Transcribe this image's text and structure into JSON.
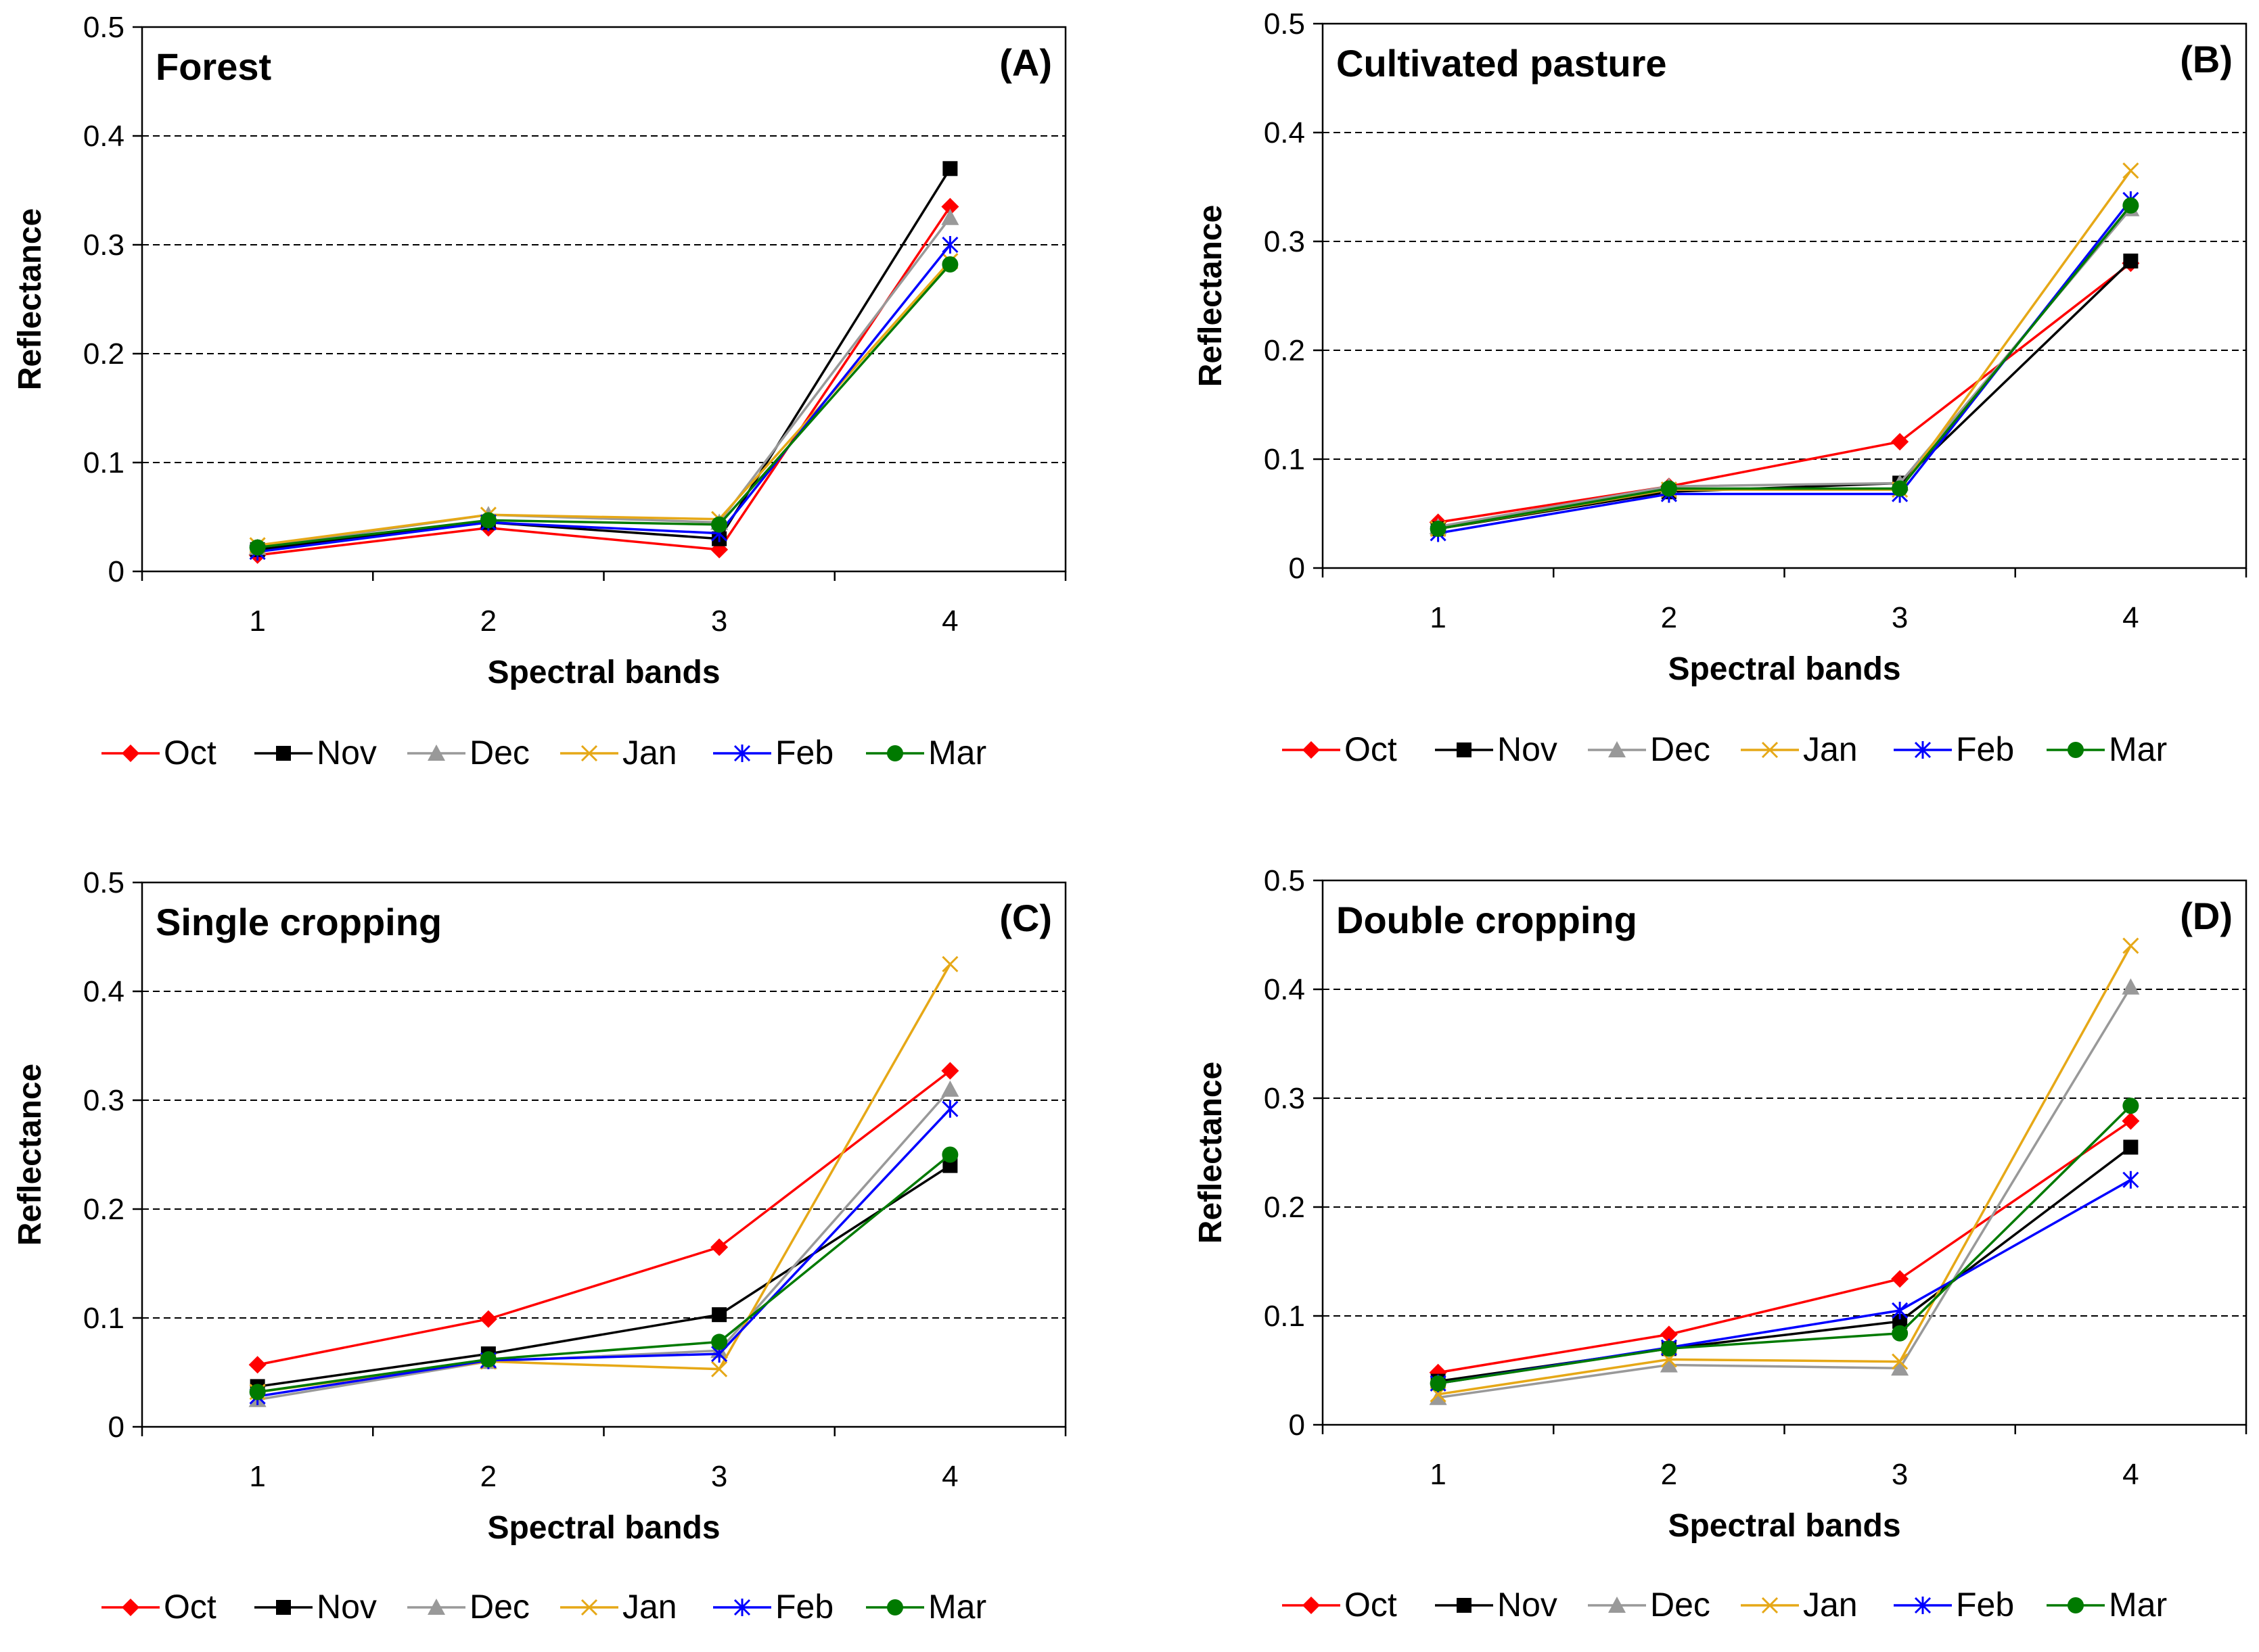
{
  "chart_data": [
    {
      "type": "line",
      "title": "Forest",
      "panel_label": "(A)",
      "xlabel": "Spectral bands",
      "ylabel": "Reflectance",
      "x": [
        1,
        2,
        3,
        4
      ],
      "xlim": [
        0.5,
        4.5
      ],
      "ylim": [
        0,
        0.5
      ],
      "yticks": [
        0,
        0.1,
        0.2,
        0.3,
        0.4,
        0.5
      ],
      "ytick_labels": [
        "0",
        "0.1",
        "0.2",
        "0.3",
        "0.4",
        "0.5"
      ],
      "grid": "horizontal dashed",
      "legend": "bottom",
      "series": [
        {
          "name": "Oct",
          "values": [
            0.015,
            0.04,
            0.02,
            0.335
          ]
        },
        {
          "name": "Nov",
          "values": [
            0.02,
            0.045,
            0.03,
            0.37
          ]
        },
        {
          "name": "Dec",
          "values": [
            0.022,
            0.052,
            0.045,
            0.325
          ]
        },
        {
          "name": "Jan",
          "values": [
            0.024,
            0.052,
            0.048,
            0.285
          ]
        },
        {
          "name": "Feb",
          "values": [
            0.018,
            0.045,
            0.035,
            0.3
          ]
        },
        {
          "name": "Mar",
          "values": [
            0.022,
            0.047,
            0.043,
            0.282
          ]
        }
      ]
    },
    {
      "type": "line",
      "title": "Cultivated pasture",
      "panel_label": "(B)",
      "xlabel": "Spectral bands",
      "ylabel": "Reflectance",
      "x": [
        1,
        2,
        3,
        4
      ],
      "xlim": [
        0.5,
        4.5
      ],
      "ylim": [
        0,
        0.5
      ],
      "yticks": [
        0,
        0.1,
        0.2,
        0.3,
        0.4,
        0.5
      ],
      "ytick_labels": [
        "0",
        "0.1",
        "0.2",
        "0.3",
        "0.4",
        "0.5"
      ],
      "grid": "horizontal dashed",
      "legend": "bottom",
      "series": [
        {
          "name": "Oct",
          "values": [
            0.042,
            0.075,
            0.116,
            0.28
          ]
        },
        {
          "name": "Nov",
          "values": [
            0.036,
            0.07,
            0.078,
            0.282
          ]
        },
        {
          "name": "Dec",
          "values": [
            0.038,
            0.075,
            0.078,
            0.33
          ]
        },
        {
          "name": "Jan",
          "values": [
            0.036,
            0.072,
            0.072,
            0.365
          ]
        },
        {
          "name": "Feb",
          "values": [
            0.032,
            0.068,
            0.068,
            0.338
          ]
        },
        {
          "name": "Mar",
          "values": [
            0.036,
            0.073,
            0.073,
            0.333
          ]
        }
      ]
    },
    {
      "type": "line",
      "title": "Single cropping",
      "panel_label": "(C)",
      "xlabel": "Spectral bands",
      "ylabel": "Reflectance",
      "x": [
        1,
        2,
        3,
        4
      ],
      "xlim": [
        0.5,
        4.5
      ],
      "ylim": [
        0,
        0.5
      ],
      "yticks": [
        0,
        0.1,
        0.2,
        0.3,
        0.4,
        0.5
      ],
      "ytick_labels": [
        "0",
        "0.1",
        "0.2",
        "0.3",
        "0.4",
        "0.5"
      ],
      "grid": "horizontal dashed",
      "legend": "bottom",
      "series": [
        {
          "name": "Oct",
          "values": [
            0.057,
            0.099,
            0.165,
            0.327
          ]
        },
        {
          "name": "Nov",
          "values": [
            0.037,
            0.067,
            0.103,
            0.24
          ]
        },
        {
          "name": "Dec",
          "values": [
            0.025,
            0.06,
            0.07,
            0.31
          ]
        },
        {
          "name": "Jan",
          "values": [
            0.032,
            0.06,
            0.053,
            0.425
          ]
        },
        {
          "name": "Feb",
          "values": [
            0.028,
            0.061,
            0.067,
            0.292
          ]
        },
        {
          "name": "Mar",
          "values": [
            0.032,
            0.062,
            0.078,
            0.25
          ]
        }
      ]
    },
    {
      "type": "line",
      "title": "Double cropping",
      "panel_label": "(D)",
      "xlabel": "Spectral bands",
      "ylabel": "Reflectance",
      "x": [
        1,
        2,
        3,
        4
      ],
      "xlim": [
        0.5,
        4.5
      ],
      "ylim": [
        0,
        0.5
      ],
      "yticks": [
        0,
        0.1,
        0.2,
        0.3,
        0.4,
        0.5
      ],
      "ytick_labels": [
        "0",
        "0.1",
        "0.2",
        "0.3",
        "0.4",
        "0.5"
      ],
      "grid": "horizontal dashed",
      "legend": "bottom",
      "series": [
        {
          "name": "Oct",
          "values": [
            0.048,
            0.083,
            0.134,
            0.279
          ]
        },
        {
          "name": "Nov",
          "values": [
            0.04,
            0.07,
            0.095,
            0.255
          ]
        },
        {
          "name": "Dec",
          "values": [
            0.025,
            0.055,
            0.052,
            0.402
          ]
        },
        {
          "name": "Jan",
          "values": [
            0.028,
            0.06,
            0.058,
            0.44
          ]
        },
        {
          "name": "Feb",
          "values": [
            0.038,
            0.071,
            0.105,
            0.225
          ]
        },
        {
          "name": "Mar",
          "values": [
            0.038,
            0.07,
            0.084,
            0.293
          ]
        }
      ]
    }
  ],
  "series_styles": [
    {
      "name": "Oct",
      "color": "#ff0000",
      "marker": "diamond"
    },
    {
      "name": "Nov",
      "color": "#000000",
      "marker": "square"
    },
    {
      "name": "Dec",
      "color": "#999999",
      "marker": "triangle"
    },
    {
      "name": "Jan",
      "color": "#e6a817",
      "marker": "x"
    },
    {
      "name": "Feb",
      "color": "#0000ff",
      "marker": "star"
    },
    {
      "name": "Mar",
      "color": "#007a00",
      "marker": "circle"
    }
  ]
}
